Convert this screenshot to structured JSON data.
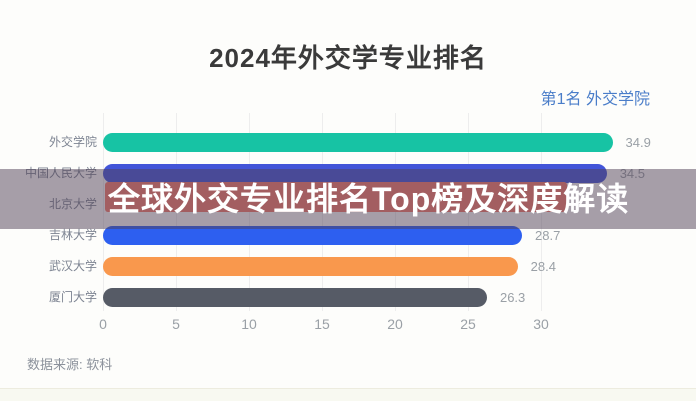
{
  "header": {
    "title": "2024年外交学专业排名"
  },
  "legend_note": {
    "rank": "第1名",
    "name": "外交学院",
    "text": "第1名 外交学院",
    "color": "#4a7dc9"
  },
  "banner": {
    "text": "全球外交专业排名Top榜及深度解读",
    "text_color": "#ffffff",
    "band_color": "#a35e61",
    "overlay_color": "rgba(79,63,85,0.5)"
  },
  "footer": {
    "source": "数据来源: 软科"
  },
  "chart_data": {
    "type": "bar",
    "orientation": "horizontal",
    "title": "2024年外交学专业排名",
    "categories": [
      "外交学院",
      "中国人民大学",
      "北京大学",
      "吉林大学",
      "武汉大学",
      "厦门大学"
    ],
    "values": [
      34.9,
      34.5,
      null,
      28.7,
      28.4,
      26.3
    ],
    "value_labels": [
      "34.9",
      "34.5",
      "",
      "28.7",
      "28.4",
      "26.3"
    ],
    "bar_colors": [
      "#17c3a4",
      "#4254d8",
      null,
      "#2d5ff0",
      "#f9984d",
      "#565b66"
    ],
    "x_ticks": [
      0,
      5,
      10,
      15,
      20,
      25,
      30
    ],
    "xlim": [
      0,
      35
    ],
    "grid": true,
    "legend_position": "none",
    "value_label_color": "#9aa0a6",
    "note": "Row 北京大学: bar and value are obscured by the semi-transparent overlay banner across the middle of the chart"
  }
}
